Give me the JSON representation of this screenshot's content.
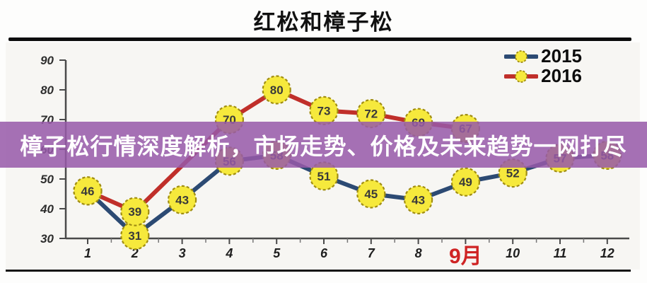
{
  "header": {
    "title": "红松和樟子松"
  },
  "overlay": {
    "text": "樟子松行情深度解析，市场走势、价格及未来趋势一网打尽",
    "bg_color": "#975aa9",
    "bg_opacity": 0.86,
    "text_color": "#ffffff"
  },
  "chart_data": {
    "type": "line",
    "title": "红松和樟子松",
    "xlabel": "",
    "ylabel": "",
    "x_tick_labels": [
      "1",
      "2",
      "3",
      "4",
      "5",
      "6",
      "7",
      "8",
      "9月",
      "10",
      "11",
      "12"
    ],
    "highlight_x_label": "9月",
    "highlight_color": "#cf2424",
    "y_ticks": [
      30,
      40,
      50,
      60,
      70,
      80,
      90
    ],
    "ylim": [
      30,
      90
    ],
    "grid": false,
    "legend_position": "top-right",
    "marker": {
      "fill": "#f6e93c",
      "border": "#a08d12"
    },
    "series": [
      {
        "name": "2015",
        "color": "#2c4a73",
        "points": [
          {
            "x": 1,
            "y": 46
          },
          {
            "x": 2,
            "y": 31
          },
          {
            "x": 3,
            "y": 43
          },
          {
            "x": 4,
            "y": 56
          },
          {
            "x": 5,
            "y": 58
          },
          {
            "x": 6,
            "y": 51
          },
          {
            "x": 7,
            "y": 45
          },
          {
            "x": 8,
            "y": 43
          },
          {
            "x": 9,
            "y": 49
          },
          {
            "x": 10,
            "y": 52
          },
          {
            "x": 11,
            "y": 57
          },
          {
            "x": 12,
            "y": 58
          }
        ]
      },
      {
        "name": "2016",
        "color": "#c02f2a",
        "points": [
          {
            "x": 1,
            "y": 46
          },
          {
            "x": 2,
            "y": 39
          },
          {
            "x": 4,
            "y": 70
          },
          {
            "x": 5,
            "y": 80
          },
          {
            "x": 6,
            "y": 73
          },
          {
            "x": 7,
            "y": 72
          },
          {
            "x": 8,
            "y": 69
          },
          {
            "x": 9,
            "y": 67
          }
        ]
      }
    ]
  }
}
